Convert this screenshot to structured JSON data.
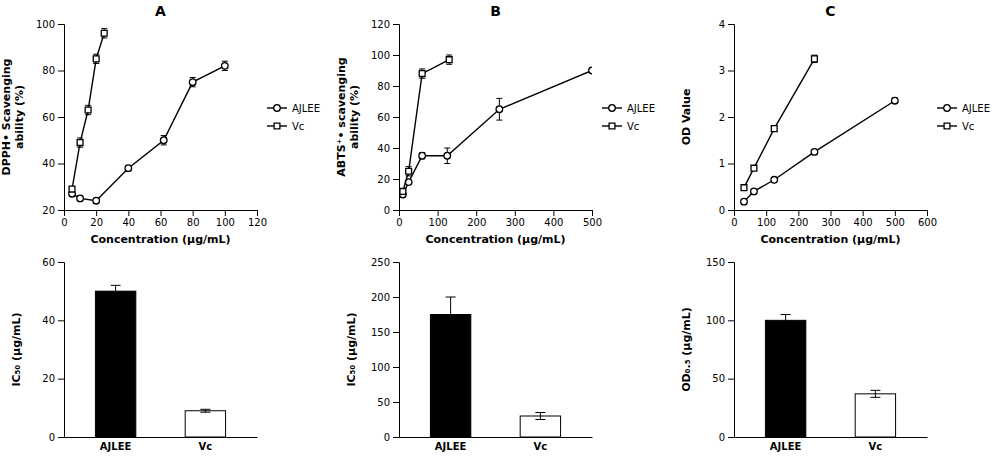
{
  "chart_data": [
    {
      "type": "line",
      "title": "A",
      "xlabel": "Concentration (μg/mL)",
      "ylabel": "DPPH• Scavenging\nability (%)",
      "xlim": [
        0,
        120
      ],
      "ylim": [
        20,
        100
      ],
      "xticks": [
        0,
        20,
        40,
        60,
        80,
        100,
        120
      ],
      "yticks": [
        20,
        40,
        60,
        80,
        100
      ],
      "legend": "right",
      "series": [
        {
          "name": "AJLEE",
          "color": "black",
          "marker": "circle",
          "x": [
            5,
            10,
            20,
            40,
            62,
            80,
            100
          ],
          "values": [
            27,
            25,
            24,
            38,
            50,
            75,
            82
          ],
          "errors": [
            1,
            1,
            1,
            1,
            2,
            2,
            2
          ]
        },
        {
          "name": "Vc",
          "color": "black",
          "marker": "square",
          "x": [
            5,
            10,
            15,
            20,
            25
          ],
          "values": [
            29,
            49,
            63,
            85,
            96
          ],
          "errors": [
            1,
            2,
            2,
            2,
            2
          ]
        }
      ]
    },
    {
      "type": "line",
      "title": "B",
      "xlabel": "Concentration (μg/mL)",
      "ylabel": "ABTS⁺• scavenging\nability (%)",
      "xlim": [
        0,
        500
      ],
      "ylim": [
        0,
        120
      ],
      "xticks": [
        0,
        100,
        200,
        300,
        400,
        500
      ],
      "yticks": [
        0,
        20,
        40,
        60,
        80,
        100,
        120
      ],
      "legend": "right",
      "series": [
        {
          "name": "AJLEE",
          "color": "black",
          "marker": "circle",
          "x": [
            10,
            25,
            60,
            125,
            260,
            500
          ],
          "values": [
            10,
            18,
            35,
            35,
            65,
            90
          ],
          "errors": [
            1,
            1,
            2,
            5,
            7,
            1
          ]
        },
        {
          "name": "Vc",
          "color": "black",
          "marker": "square",
          "x": [
            10,
            25,
            60,
            130
          ],
          "values": [
            12,
            25,
            88,
            97
          ],
          "errors": [
            1,
            3,
            3,
            3
          ]
        }
      ]
    },
    {
      "type": "line",
      "title": "C",
      "xlabel": "Concentration (μg/mL)",
      "ylabel": "OD Value",
      "xlim": [
        0,
        600
      ],
      "ylim": [
        0,
        4
      ],
      "xticks": [
        0,
        100,
        200,
        300,
        400,
        500,
        600
      ],
      "yticks": [
        0,
        1,
        2,
        3,
        4
      ],
      "legend": "right",
      "series": [
        {
          "name": "AJLEE",
          "color": "black",
          "marker": "circle",
          "x": [
            31,
            62,
            125,
            250,
            500
          ],
          "values": [
            0.18,
            0.4,
            0.65,
            1.25,
            2.35
          ],
          "errors": [
            0.02,
            0.02,
            0.03,
            0.05,
            0.06
          ]
        },
        {
          "name": "Vc",
          "color": "black",
          "marker": "square",
          "x": [
            31,
            62,
            125,
            250
          ],
          "values": [
            0.48,
            0.9,
            1.75,
            3.25
          ],
          "errors": [
            0.03,
            0.04,
            0.05,
            0.08
          ]
        }
      ]
    },
    {
      "type": "bar",
      "ylabel": "IC₅₀ (μg/mL)",
      "ylim": [
        0,
        60
      ],
      "yticks": [
        0,
        20,
        40,
        60
      ],
      "categories": [
        "AJLEE",
        "Vc"
      ],
      "values": [
        50,
        9
      ],
      "errors": [
        2,
        0.5
      ],
      "colors": [
        "black",
        "white"
      ]
    },
    {
      "type": "bar",
      "ylabel": "IC₅₀ (μg/mL)",
      "ylim": [
        0,
        250
      ],
      "yticks": [
        0,
        50,
        100,
        150,
        200,
        250
      ],
      "categories": [
        "AJLEE",
        "Vc"
      ],
      "values": [
        175,
        30
      ],
      "errors": [
        25,
        5
      ],
      "colors": [
        "black",
        "white"
      ]
    },
    {
      "type": "bar",
      "ylabel": "OD₀.₅ (μg/mL)",
      "ylim": [
        0,
        150
      ],
      "yticks": [
        0,
        50,
        100,
        150
      ],
      "categories": [
        "AJLEE",
        "Vc"
      ],
      "values": [
        100,
        37
      ],
      "errors": [
        5,
        3
      ],
      "colors": [
        "black",
        "white"
      ]
    }
  ]
}
